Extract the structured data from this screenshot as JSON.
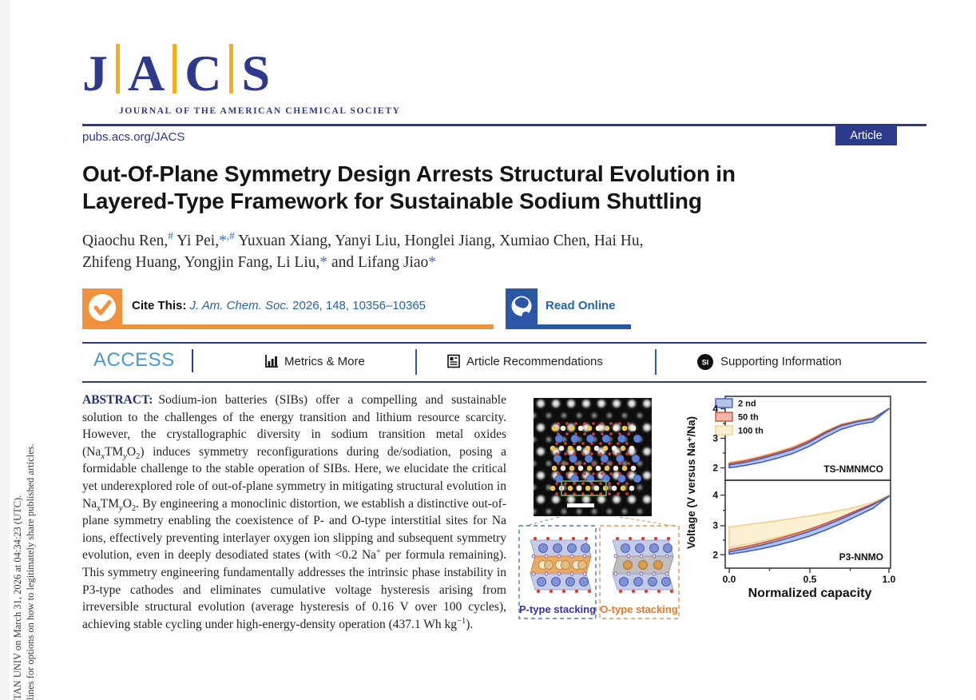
{
  "masthead": {
    "logo_letters": [
      "J",
      "A",
      "C",
      "S"
    ],
    "tagline": "JOURNAL OF THE AMERICAN CHEMICAL SOCIETY",
    "site_url": "pubs.acs.org/JACS",
    "badge_label": "Article"
  },
  "title": {
    "line1": "Out-Of-Plane Symmetry Design Arrests Structural Evolution in",
    "line2": "Layered-Type Framework for Sustainable Sodium Shuttling"
  },
  "authors": {
    "line1": [
      {
        "t": "Qiaochu Ren,"
      },
      {
        "t": "#",
        "sup": true,
        "c": true
      },
      {
        "t": " Yi Pei,"
      },
      {
        "t": "*",
        "c": true
      },
      {
        "t": ",#",
        "sup": true,
        "c": true
      },
      {
        "t": " Yuxuan Xiang, Yanyi Liu, Honglei Jiang, Xumiao Chen, Hai Hu,"
      }
    ],
    "line2": [
      {
        "t": "Zhifeng Huang, Yongjin Fang, Li Liu,"
      },
      {
        "t": "*",
        "c": true
      },
      {
        "t": " and Lifang Jiao"
      },
      {
        "t": "*",
        "c": true
      }
    ]
  },
  "cite": {
    "label": "Cite This:",
    "journal": "J. Am. Chem. Soc.",
    "citation_rest": " 2026, 148, 10356–10365",
    "read_online": "Read Online"
  },
  "access_bar": {
    "access_label": "ACCESS",
    "metrics": "Metrics & More",
    "recommendations": "Article Recommendations",
    "supporting": "Supporting Information",
    "si_icon": "SI"
  },
  "abstract": {
    "heading": "ABSTRACT:",
    "segments": [
      {
        "t": "Sodium-ion batteries (SIBs) offer a compelling and sustainable solution to the challenges of the energy transition and lithium resource scarcity. However, the crystallographic diversity in sodium transition metal oxides (Na"
      },
      {
        "t": "x",
        "sub": true,
        "i": true
      },
      {
        "t": "TM"
      },
      {
        "t": "y",
        "sub": true,
        "i": true
      },
      {
        "t": "O"
      },
      {
        "t": "2",
        "sub": true
      },
      {
        "t": ") induces symmetry reconfigurations during de/sodiation, posing a formidable challenge to the stable operation of SIBs. Here, we elucidate the critical yet underexplored role of out-of-plane symmetry in mitigating structural evolution in Na"
      },
      {
        "t": "x",
        "sub": true,
        "i": true
      },
      {
        "t": "TM"
      },
      {
        "t": "y",
        "sub": true,
        "i": true
      },
      {
        "t": "O"
      },
      {
        "t": "2",
        "sub": true
      },
      {
        "t": ". By engineering a monoclinic distortion, we establish a distinctive out-of-plane symmetry enabling the coexistence of P- and O-type interstitial sites for Na ions, effectively preventing interlayer oxygen ion slipping and subsequent symmetry evolution, even in deeply desodiated states (with <0.2 Na"
      },
      {
        "t": "+",
        "sup": true
      },
      {
        "t": " per formula remaining). This symmetry engineering fundamentally addresses the intrinsic phase instability in P3-type cathodes and eliminates cumulative voltage hysteresis arising from irreversible structural evolution (average hysteresis of 0.16 V over 100 cycles), achieving stable cycling under high-energy-density operation (437.1 Wh kg"
      },
      {
        "t": "−1",
        "sup": true
      },
      {
        "t": ")."
      }
    ]
  },
  "figure": {
    "p_label": "P-type stacking",
    "o_label": "O-type stacking"
  },
  "chart_data": {
    "type": "line",
    "xlabel": "Normalized capacity",
    "ylabel": "Voltage (V versus Na⁺/Na)",
    "x": [
      0,
      0.1,
      0.2,
      0.3,
      0.4,
      0.5,
      0.6,
      0.7,
      0.8,
      0.9,
      1.0
    ],
    "xticks": [
      0.0,
      0.5,
      1.0
    ],
    "xtick_labels": [
      "0.0",
      "0.5",
      "1.0"
    ],
    "legend_position": "top-left",
    "grid": false,
    "legend": [
      {
        "label": "2 nd",
        "color": "#3f5fbf",
        "fill": "#b3c2e6"
      },
      {
        "label": "50 th",
        "color": "#d84b32",
        "fill": "#f0b8a8"
      },
      {
        "label": "100 th",
        "color": "#f0d08a",
        "fill": "#fbf0d2"
      }
    ],
    "panels": [
      {
        "label": "TS-NMNMCO",
        "ylim": [
          1.55,
          4.45
        ],
        "yticks": [
          2,
          3,
          4
        ],
        "ytick_labels": [
          "2",
          "3",
          "4"
        ],
        "series": [
          {
            "name": "2 nd",
            "charge": [
              2.08,
              2.17,
              2.3,
              2.45,
              2.62,
              2.86,
              3.17,
              3.43,
              3.57,
              3.67,
              4.03
            ],
            "discharge": [
              1.98,
              2.06,
              2.17,
              2.31,
              2.48,
              2.72,
              3.03,
              3.31,
              3.47,
              3.57,
              4.03
            ]
          },
          {
            "name": "50 th",
            "charge": [
              2.13,
              2.22,
              2.35,
              2.5,
              2.67,
              2.91,
              3.21,
              3.46,
              3.59,
              3.69,
              4.02
            ],
            "discharge": [
              2.03,
              2.11,
              2.22,
              2.36,
              2.53,
              2.77,
              3.08,
              3.35,
              3.5,
              3.6,
              4.02
            ]
          },
          {
            "name": "100 th",
            "charge": [
              2.17,
              2.26,
              2.39,
              2.54,
              2.71,
              2.95,
              3.25,
              3.49,
              3.62,
              3.71,
              4.01
            ],
            "discharge": [
              2.06,
              2.14,
              2.25,
              2.39,
              2.56,
              2.8,
              3.11,
              3.38,
              3.53,
              3.62,
              4.01
            ]
          }
        ]
      },
      {
        "label": "P3-NNMO",
        "ylim": [
          1.55,
          4.5
        ],
        "yticks": [
          2,
          3,
          4
        ],
        "ytick_labels": [
          "2",
          "3",
          "4"
        ],
        "series": [
          {
            "name": "2 nd",
            "charge": [
              2.1,
              2.2,
              2.32,
              2.46,
              2.61,
              2.78,
              2.98,
              3.2,
              3.44,
              3.68,
              3.97
            ],
            "discharge": [
              2.02,
              2.1,
              2.2,
              2.32,
              2.46,
              2.62,
              2.82,
              3.05,
              3.3,
              3.56,
              3.97
            ]
          },
          {
            "name": "50 th",
            "charge": [
              2.17,
              2.27,
              2.39,
              2.53,
              2.68,
              2.85,
              3.04,
              3.26,
              3.49,
              3.71,
              3.95
            ],
            "discharge": [
              2.07,
              2.15,
              2.25,
              2.37,
              2.51,
              2.67,
              2.87,
              3.1,
              3.35,
              3.6,
              3.95
            ]
          },
          {
            "name": "100 th",
            "charge": [
              2.93,
              3.0,
              3.07,
              3.14,
              3.22,
              3.3,
              3.39,
              3.49,
              3.61,
              3.76,
              4.0
            ],
            "discharge": [
              2.24,
              2.34,
              2.46,
              2.58,
              2.71,
              2.85,
              3.0,
              3.17,
              3.35,
              3.56,
              4.0
            ]
          }
        ]
      }
    ]
  },
  "sidebar_note": {
    "line1": "TAN UNIV on March 31, 2026 at 04:34:23 (UTC).",
    "line2": "lines for options on how to legitimately share published articles."
  },
  "colors": {
    "navy": "#2d3a8c",
    "gold": "#f3b01c",
    "orange": "#f0923c",
    "read_online_blue": "#2a57a5",
    "access_blue": "#4d94d0",
    "link_blue": "#2563ad",
    "p_label_blue": "#3333a0",
    "o_label_orange": "#e07828"
  }
}
